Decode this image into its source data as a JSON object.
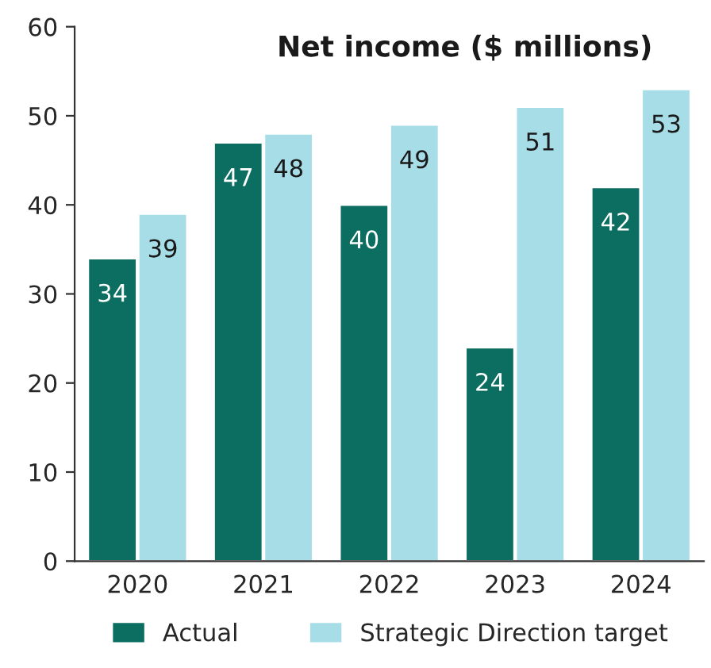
{
  "chart_data": {
    "type": "bar",
    "title": "Net income ($ millions)",
    "categories": [
      "2020",
      "2021",
      "2022",
      "2023",
      "2024"
    ],
    "series": [
      {
        "name": "Actual",
        "color": "#0b6e61",
        "values": [
          34,
          47,
          40,
          24,
          42
        ]
      },
      {
        "name": "Strategic Direction target",
        "color": "#a6dde7",
        "values": [
          39,
          48,
          49,
          51,
          53
        ]
      }
    ],
    "ylim": [
      0,
      60
    ],
    "yticks": [
      0,
      10,
      20,
      30,
      40,
      50,
      60
    ],
    "grid": false,
    "legend": "bottom",
    "data_labels": true
  }
}
